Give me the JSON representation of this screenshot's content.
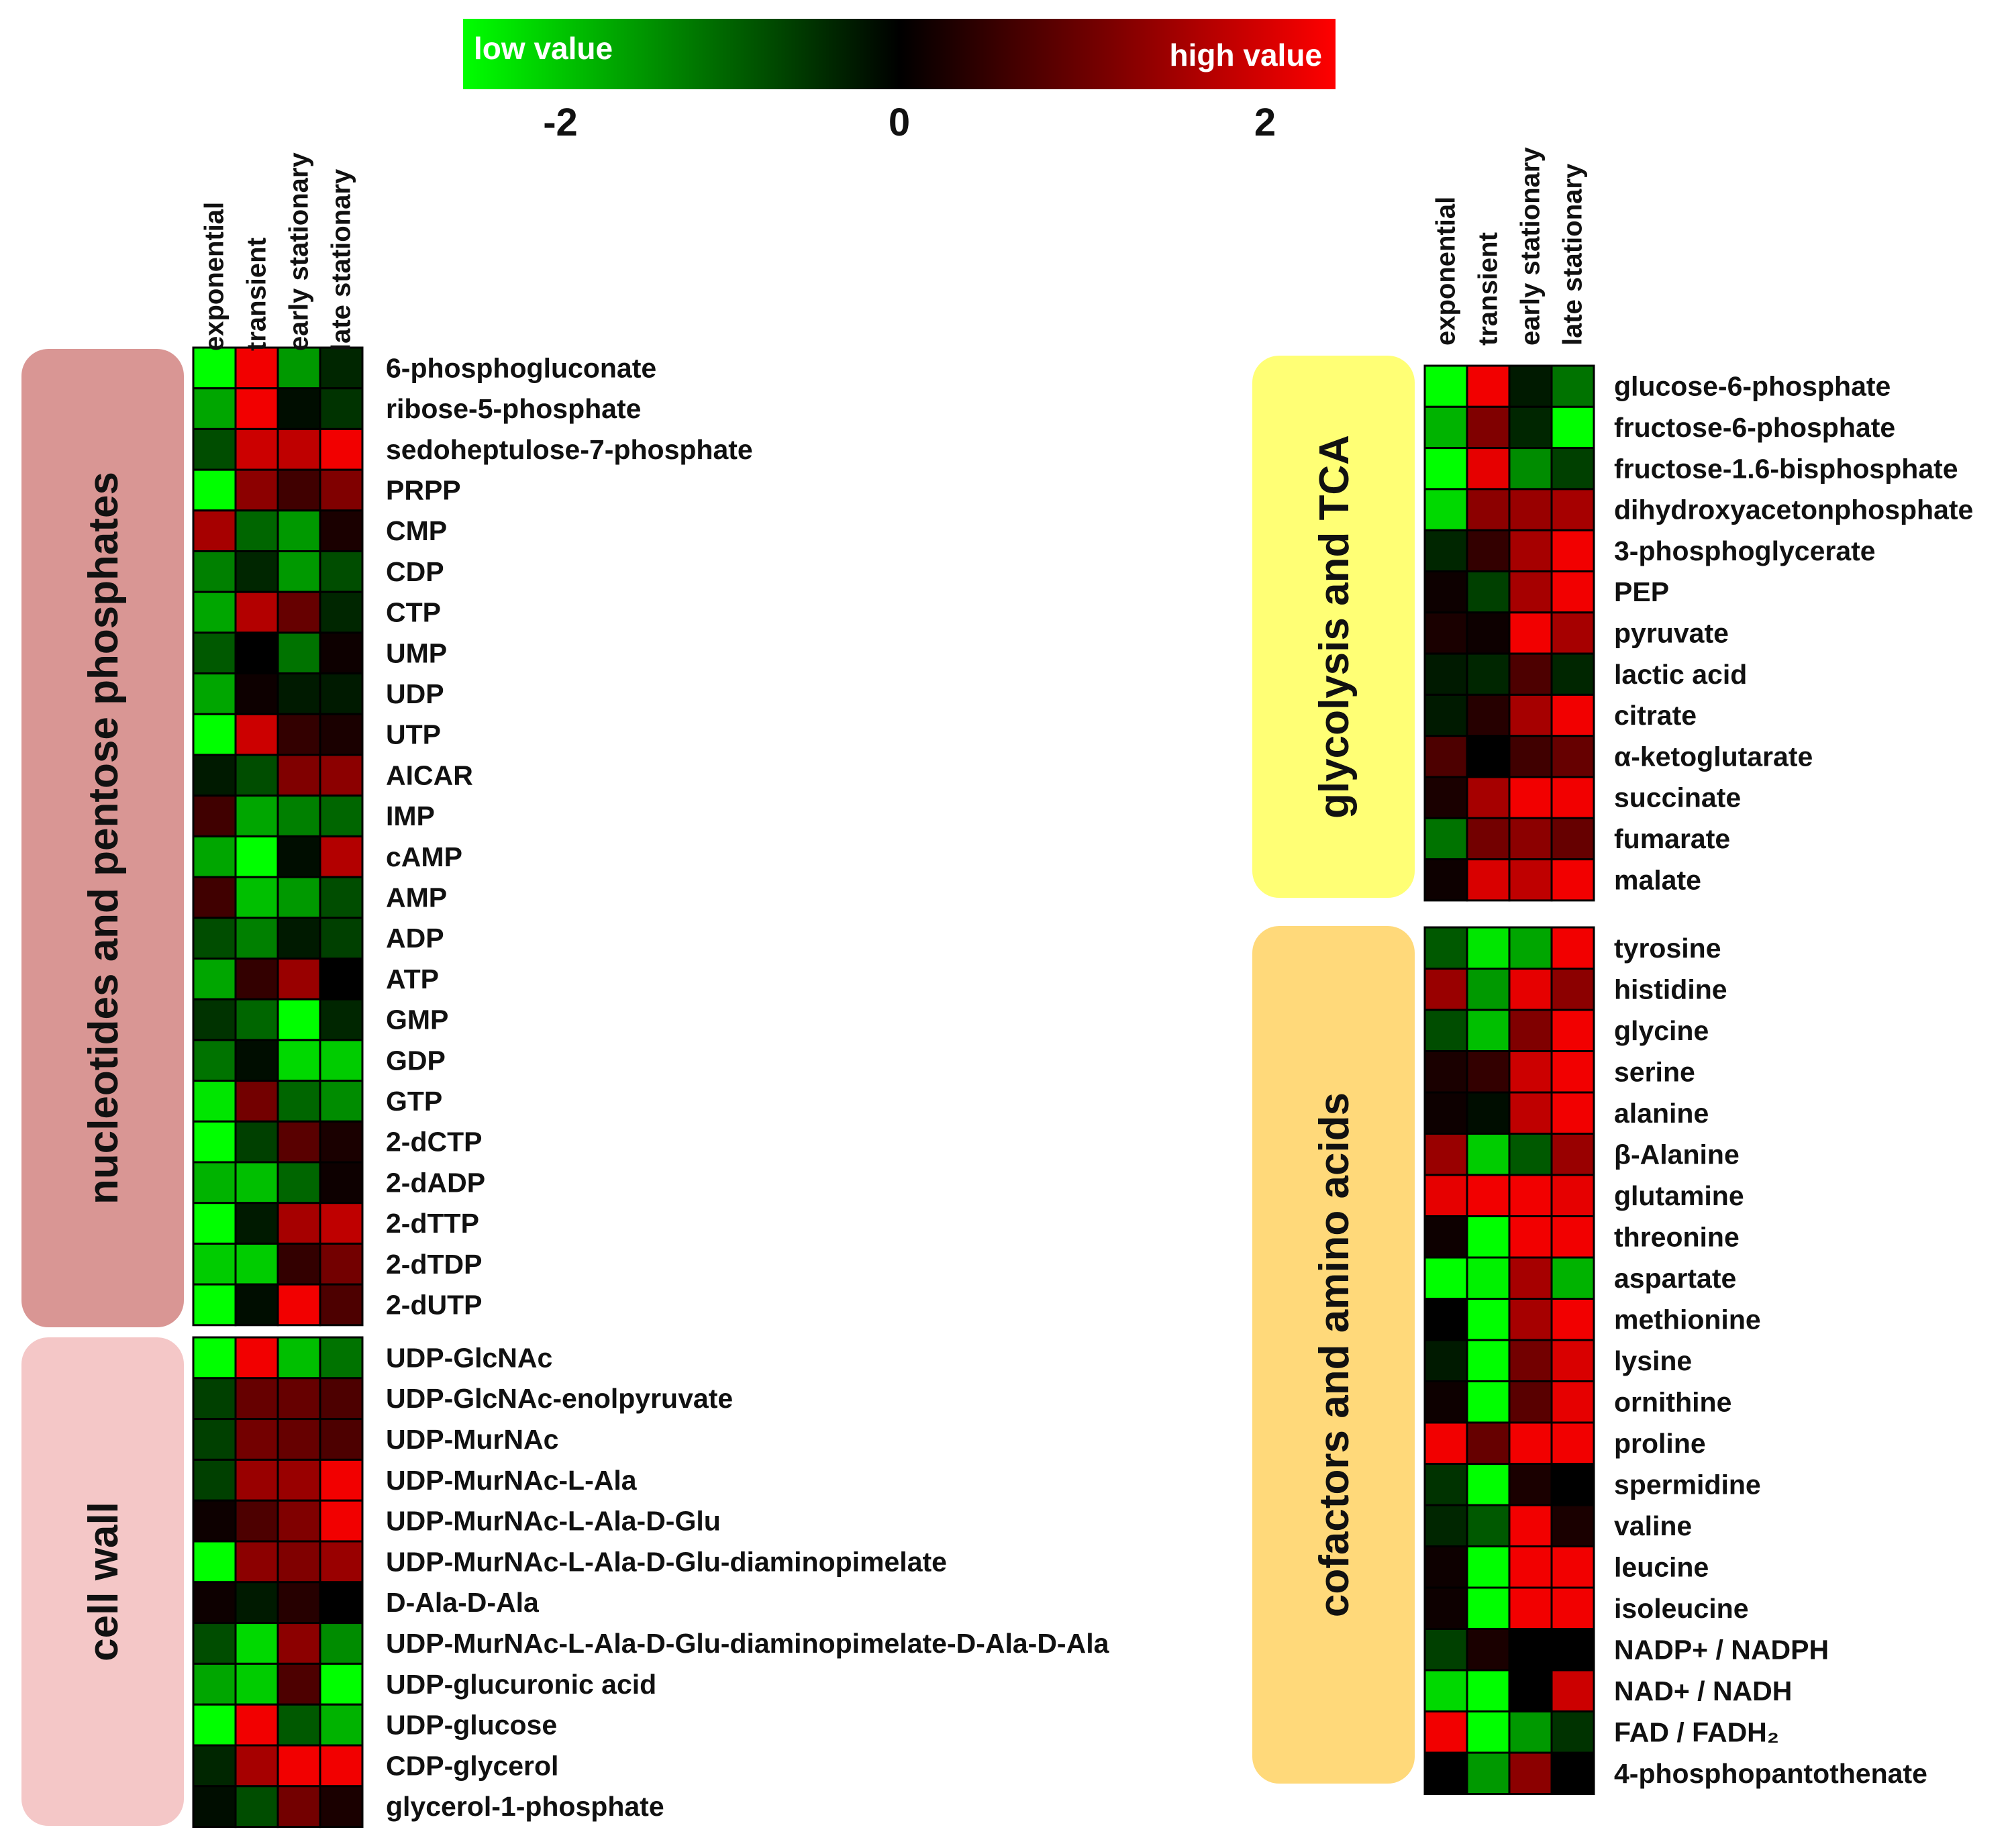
{
  "chart_data": {
    "type": "heatmap",
    "value_range": [
      -2,
      2
    ],
    "color_scale": {
      "low_color": "#00ff00",
      "mid_color": "#000000",
      "high_color": "#ff0000",
      "low_label": "low value",
      "high_label": "high value",
      "ticks": [
        "-2",
        "0",
        "2"
      ]
    },
    "columns": [
      "exponential",
      "transient",
      "early stationary",
      "late stationary"
    ],
    "groups": [
      {
        "name": "nucleotides and pentose phosphates",
        "color": "#d99694",
        "rows": [
          {
            "label": "6-phosphogluconate",
            "values": [
              -2.0,
              1.9,
              -1.2,
              -0.3
            ]
          },
          {
            "label": "ribose-5-phosphate",
            "values": [
              -1.3,
              1.9,
              -0.1,
              -0.4
            ]
          },
          {
            "label": "sedoheptulose-7-phosphate",
            "values": [
              -0.6,
              1.6,
              1.5,
              1.9
            ]
          },
          {
            "label": "PRPP",
            "values": [
              -2.0,
              1.1,
              0.5,
              1.0
            ]
          },
          {
            "label": "CMP",
            "values": [
              1.3,
              -0.8,
              -1.2,
              0.2
            ]
          },
          {
            "label": "CDP",
            "values": [
              -1.0,
              -0.3,
              -1.2,
              -0.6
            ]
          },
          {
            "label": "CTP",
            "values": [
              -1.3,
              1.4,
              0.8,
              -0.3
            ]
          },
          {
            "label": "UMP",
            "values": [
              -0.7,
              0.0,
              -0.9,
              0.1
            ]
          },
          {
            "label": "UDP",
            "values": [
              -1.3,
              0.1,
              -0.2,
              -0.2
            ]
          },
          {
            "label": "UTP",
            "values": [
              -2.0,
              1.6,
              0.4,
              0.2
            ]
          },
          {
            "label": "AICAR",
            "values": [
              -0.2,
              -0.6,
              1.0,
              1.1
            ]
          },
          {
            "label": "IMP",
            "values": [
              0.5,
              -1.3,
              -1.0,
              -0.8
            ]
          },
          {
            "label": "cAMP",
            "values": [
              -1.3,
              -2.0,
              -0.1,
              1.4
            ]
          },
          {
            "label": "AMP",
            "values": [
              0.5,
              -1.5,
              -1.2,
              -0.6
            ]
          },
          {
            "label": "ADP",
            "values": [
              -0.6,
              -1.0,
              -0.2,
              -0.5
            ]
          },
          {
            "label": "ATP",
            "values": [
              -1.3,
              0.4,
              1.2,
              0.0
            ]
          },
          {
            "label": "GMP",
            "values": [
              -0.4,
              -0.8,
              -2.0,
              -0.3
            ]
          },
          {
            "label": "GDP",
            "values": [
              -0.9,
              -0.1,
              -1.7,
              -1.6
            ]
          },
          {
            "label": "GTP",
            "values": [
              -1.8,
              0.9,
              -0.8,
              -1.1
            ]
          },
          {
            "label": "2-dCTP",
            "values": [
              -2.0,
              -0.5,
              0.7,
              0.2
            ]
          },
          {
            "label": "2-dADP",
            "values": [
              -1.4,
              -1.5,
              -0.8,
              0.1
            ]
          },
          {
            "label": "2-dTTP",
            "values": [
              -2.0,
              -0.2,
              1.3,
              1.5
            ]
          },
          {
            "label": "2-dTDP",
            "values": [
              -1.6,
              -1.6,
              0.4,
              0.9
            ]
          },
          {
            "label": "2-dUTP",
            "values": [
              -2.0,
              -0.1,
              1.9,
              0.6
            ]
          }
        ]
      },
      {
        "name": "cell wall",
        "color": "#f4c7c7",
        "rows": [
          {
            "label": "UDP-GlcNAc",
            "values": [
              -2.0,
              1.9,
              -1.5,
              -0.9
            ]
          },
          {
            "label": "UDP-GlcNAc-enolpyruvate",
            "values": [
              -0.5,
              0.8,
              0.8,
              0.6
            ]
          },
          {
            "label": "UDP-MurNAc",
            "values": [
              -0.5,
              0.9,
              0.8,
              0.6
            ]
          },
          {
            "label": "UDP-MurNAc-L-Ala",
            "values": [
              -0.5,
              1.2,
              1.2,
              1.9
            ]
          },
          {
            "label": "UDP-MurNAc-L-Ala-D-Glu",
            "values": [
              0.1,
              0.6,
              1.0,
              1.9
            ]
          },
          {
            "label": "UDP-MurNAc-L-Ala-D-Glu-diaminopimelate",
            "values": [
              -2.0,
              1.1,
              1.0,
              1.2
            ]
          },
          {
            "label": "D-Ala-D-Ala",
            "values": [
              0.1,
              -0.2,
              0.3,
              0.0
            ]
          },
          {
            "label": "UDP-MurNAc-L-Ala-D-Glu-diaminopimelate-D-Ala-D-Ala",
            "values": [
              -0.6,
              -1.7,
              1.1,
              -1.1
            ]
          },
          {
            "label": "UDP-glucuronic acid",
            "values": [
              -1.3,
              -1.6,
              0.6,
              -2.0
            ]
          },
          {
            "label": "UDP-glucose",
            "values": [
              -2.0,
              1.9,
              -0.7,
              -1.4
            ]
          },
          {
            "label": "CDP-glycerol",
            "values": [
              -0.3,
              1.3,
              1.9,
              1.9
            ]
          },
          {
            "label": "glycerol-1-phosphate",
            "values": [
              -0.1,
              -0.6,
              0.9,
              0.2
            ]
          }
        ]
      },
      {
        "name": "glycolysis and TCA",
        "color": "#ffff75",
        "rows": [
          {
            "label": "glucose-6-phosphate",
            "values": [
              -2.0,
              1.9,
              -0.2,
              -0.9
            ]
          },
          {
            "label": "fructose-6-phosphate",
            "values": [
              -1.4,
              1.0,
              -0.3,
              -2.0
            ]
          },
          {
            "label": "fructose-1.6-bisphosphate",
            "values": [
              -2.0,
              1.8,
              -1.1,
              -0.5
            ]
          },
          {
            "label": "dihydroxyacetonphosphate",
            "values": [
              -1.7,
              1.1,
              1.2,
              1.3
            ]
          },
          {
            "label": "3-phosphoglycerate",
            "values": [
              -0.3,
              0.4,
              1.3,
              1.9
            ]
          },
          {
            "label": "PEP",
            "values": [
              0.1,
              -0.5,
              1.3,
              1.9
            ]
          },
          {
            "label": "pyruvate",
            "values": [
              0.2,
              0.1,
              1.9,
              1.3
            ]
          },
          {
            "label": "lactic acid",
            "values": [
              -0.2,
              -0.3,
              0.6,
              -0.3
            ]
          },
          {
            "label": "citrate",
            "values": [
              -0.2,
              0.3,
              1.3,
              1.9
            ]
          },
          {
            "label": "α-ketoglutarate",
            "values": [
              0.6,
              0.0,
              0.5,
              0.8
            ]
          },
          {
            "label": "succinate",
            "values": [
              0.2,
              1.3,
              1.9,
              1.9
            ]
          },
          {
            "label": "fumarate",
            "values": [
              -0.9,
              0.9,
              1.1,
              0.8
            ]
          },
          {
            "label": "malate",
            "values": [
              0.1,
              1.7,
              1.5,
              1.9
            ]
          }
        ]
      },
      {
        "name": "cofactors and amino acids",
        "color": "#ffd97a",
        "rows": [
          {
            "label": "tyrosine",
            "values": [
              -0.7,
              -1.8,
              -1.3,
              1.9
            ]
          },
          {
            "label": "histidine",
            "values": [
              1.2,
              -1.2,
              1.8,
              1.1
            ]
          },
          {
            "label": "glycine",
            "values": [
              -0.6,
              -1.5,
              1.0,
              1.9
            ]
          },
          {
            "label": "serine",
            "values": [
              0.2,
              0.4,
              1.6,
              1.9
            ]
          },
          {
            "label": "alanine",
            "values": [
              0.1,
              -0.1,
              1.5,
              1.9
            ]
          },
          {
            "label": "β-Alanine",
            "values": [
              1.2,
              -1.6,
              -0.7,
              1.2
            ]
          },
          {
            "label": "glutamine",
            "values": [
              1.8,
              1.9,
              1.9,
              1.8
            ]
          },
          {
            "label": "threonine",
            "values": [
              0.1,
              -2.0,
              1.9,
              1.9
            ]
          },
          {
            "label": "aspartate",
            "values": [
              -2.0,
              -1.9,
              1.3,
              -1.4
            ]
          },
          {
            "label": "methionine",
            "values": [
              0.0,
              -2.0,
              1.3,
              1.9
            ]
          },
          {
            "label": "lysine",
            "values": [
              -0.2,
              -2.0,
              0.9,
              1.7
            ]
          },
          {
            "label": "ornithine",
            "values": [
              0.1,
              -2.0,
              0.7,
              1.8
            ]
          },
          {
            "label": "proline",
            "values": [
              1.9,
              0.8,
              1.9,
              1.9
            ]
          },
          {
            "label": "spermidine",
            "values": [
              -0.4,
              -2.0,
              0.2,
              0.0
            ]
          },
          {
            "label": "valine",
            "values": [
              -0.3,
              -0.7,
              1.9,
              0.2
            ]
          },
          {
            "label": "leucine",
            "values": [
              0.1,
              -2.0,
              1.9,
              1.9
            ]
          },
          {
            "label": "isoleucine",
            "values": [
              0.1,
              -2.0,
              1.9,
              1.9
            ]
          },
          {
            "label": "NADP+ / NADPH",
            "values": [
              -0.5,
              0.2,
              0.0,
              0.0
            ]
          },
          {
            "label": "NAD+ / NADH",
            "values": [
              -1.7,
              -2.0,
              0.0,
              1.6
            ]
          },
          {
            "label": "FAD / FADH₂",
            "values": [
              1.9,
              -2.0,
              -1.2,
              -0.4
            ]
          },
          {
            "label": "4-phosphopantothenate",
            "values": [
              0.0,
              -1.2,
              1.1,
              0.0
            ]
          }
        ]
      }
    ]
  }
}
